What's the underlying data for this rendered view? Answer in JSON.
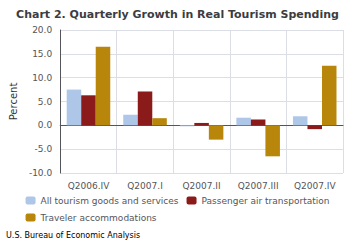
{
  "chart_data": {
    "type": "bar",
    "title": "Chart 2. Quarterly Growth in Real Tourism Spending",
    "ylabel": "Percent",
    "categories": [
      "Q2006.IV",
      "Q2007.I",
      "Q2007.II",
      "Q2007.III",
      "Q2007.IV"
    ],
    "series": [
      {
        "name": "All tourism goods and services",
        "color": "#aec6e8",
        "values": [
          7.5,
          2.2,
          -0.2,
          1.6,
          1.9
        ]
      },
      {
        "name": "Passenger air transportation",
        "color": "#8b1a1a",
        "values": [
          6.3,
          7.1,
          0.5,
          1.2,
          -0.8
        ]
      },
      {
        "name": "Traveler accommodations",
        "color": "#b8860b",
        "values": [
          16.5,
          1.5,
          -3.0,
          -6.5,
          12.5
        ]
      }
    ],
    "ylim": [
      -10.0,
      20.0
    ],
    "yticks": [
      {
        "value": -10.0,
        "label": "-10.0"
      },
      {
        "value": -5.0,
        "label": "-5.0"
      },
      {
        "value": 0.0,
        "label": "0.0"
      },
      {
        "value": 5.0,
        "label": "5.0"
      },
      {
        "value": 10.0,
        "label": "10.0"
      },
      {
        "value": 15.0,
        "label": "15.0"
      },
      {
        "value": 20.0,
        "label": "20.0"
      }
    ],
    "grid": true,
    "legend": "bottom",
    "annotations": [
      "U.S. Bureau of Economic Analysis"
    ]
  }
}
